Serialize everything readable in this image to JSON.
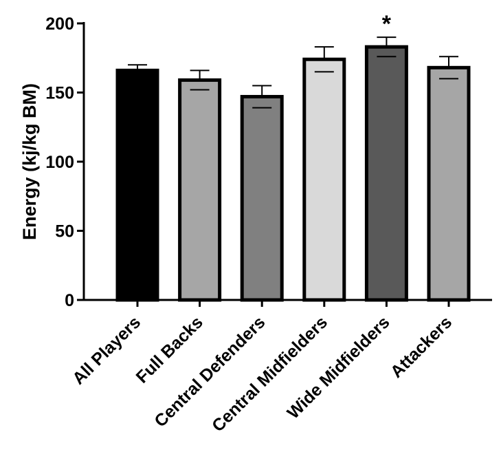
{
  "chart_data": {
    "type": "bar",
    "ylabel": "Energy (kj/kg BM)",
    "xlabel": "",
    "ylim": [
      0,
      200
    ],
    "yticks": [
      0,
      50,
      100,
      150,
      200
    ],
    "categories": [
      "All Players",
      "Full Backs",
      "Central Defenders",
      "Central Midfielders",
      "Wide Midfielders",
      "Attackers"
    ],
    "values": [
      166,
      159,
      147,
      174,
      183,
      168
    ],
    "errors": [
      4,
      7,
      8,
      9,
      7,
      8
    ],
    "colors": [
      "#000000",
      "#a6a6a6",
      "#808080",
      "#d9d9d9",
      "#595959",
      "#a6a6a6"
    ],
    "annotations": [
      {
        "category": "Wide Midfielders",
        "text": "*"
      }
    ],
    "grid": false,
    "legend": "none"
  }
}
